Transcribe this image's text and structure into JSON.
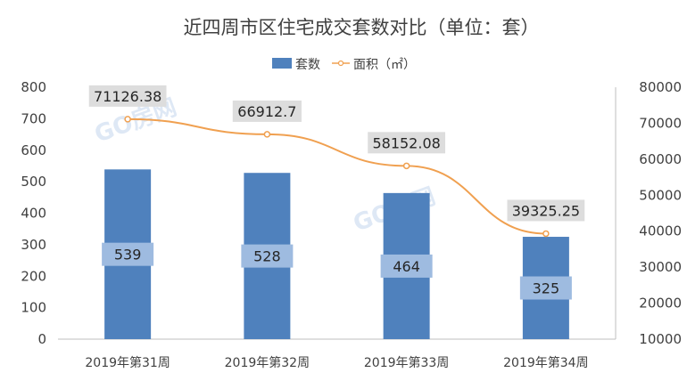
{
  "chart_data": {
    "type": "bar",
    "title": "近四周市区住宅成交套数对比（单位：套）",
    "categories": [
      "2019年第31周",
      "2019年第32周",
      "2019年第33周",
      "2019年第34周"
    ],
    "series": [
      {
        "name": "套数",
        "type": "bar",
        "axis": "left",
        "values": [
          539,
          528,
          464,
          325
        ],
        "color": "#4f81bd"
      },
      {
        "name": "面积（㎡）",
        "type": "line",
        "axis": "right",
        "values": [
          71126.38,
          66912.7,
          58152.08,
          39325.25
        ],
        "color": "#f0a050"
      }
    ],
    "y_left": {
      "min": 0,
      "max": 800,
      "ticks": [
        "0",
        "100",
        "200",
        "300",
        "400",
        "500",
        "600",
        "700",
        "800"
      ]
    },
    "y_right": {
      "min": 10000,
      "max": 80000,
      "ticks": [
        "10000",
        "20000",
        "30000",
        "40000",
        "50000",
        "60000",
        "70000",
        "80000"
      ]
    },
    "bar_labels": [
      "539",
      "528",
      "464",
      "325"
    ],
    "line_labels": [
      "71126.38",
      "66912.7",
      "58152.08",
      "39325.25"
    ],
    "legend": {
      "position": "top"
    },
    "grid": false,
    "label_box_color": "#dddddd",
    "bar_label_box_color": "#9ebbe0"
  },
  "watermark": "GO房网"
}
